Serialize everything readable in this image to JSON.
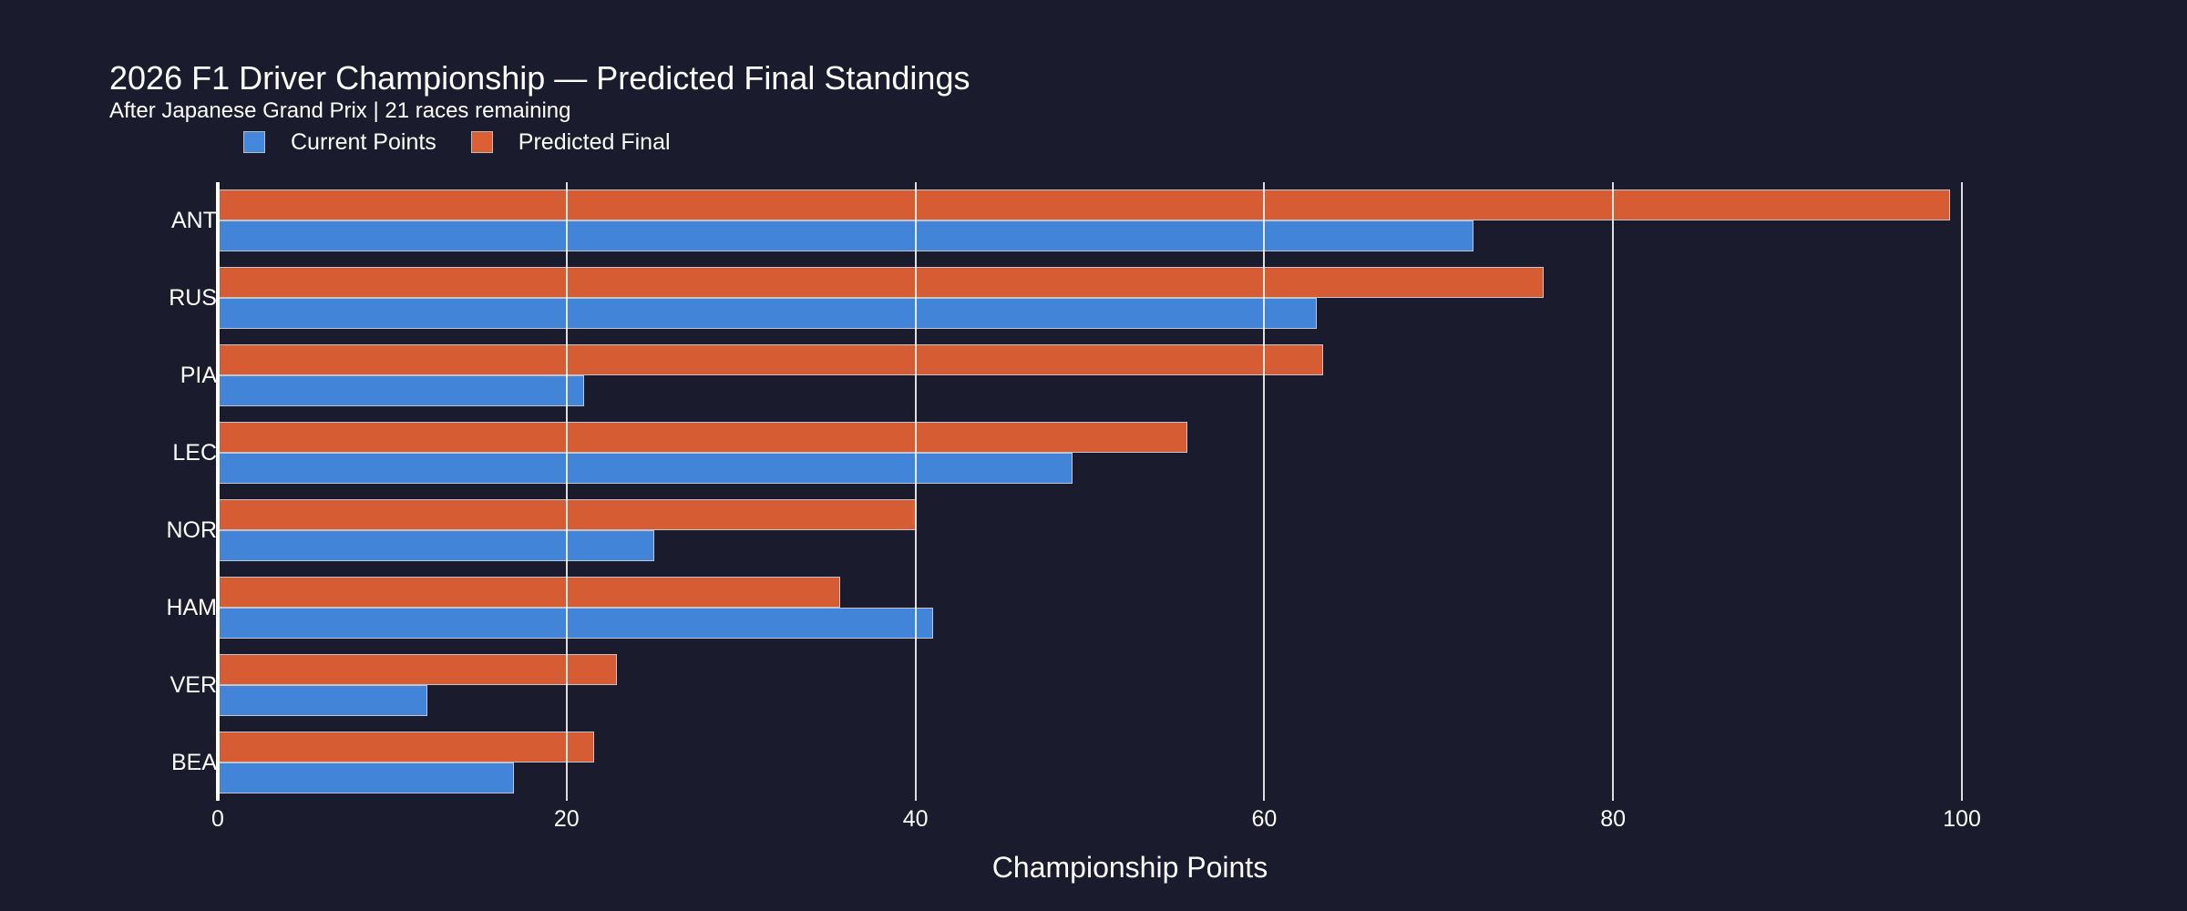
{
  "header": {
    "title": "2026 F1 Driver Championship — Predicted Final Standings",
    "subtitle": "After Japanese Grand Prix | 21 races remaining"
  },
  "legend": {
    "items": [
      {
        "label": "Current Points",
        "color": "#4488dd"
      },
      {
        "label": "Predicted Final",
        "color": "#dd5f34"
      }
    ]
  },
  "axis": {
    "x_title": "Championship Points",
    "x_ticks": [
      "0",
      "20",
      "40",
      "60",
      "80",
      "100"
    ]
  },
  "colors": {
    "background": "#1b1b2e",
    "current": "#4488dd",
    "predicted": "#dd5f34"
  },
  "chart_data": {
    "type": "bar",
    "orientation": "horizontal",
    "title": "2026 F1 Driver Championship — Predicted Final Standings",
    "subtitle": "After Japanese Grand Prix | 21 races remaining",
    "xlabel": "Championship Points",
    "ylabel": "",
    "xlim": [
      0,
      100
    ],
    "x_ticks": [
      0,
      20,
      40,
      60,
      80,
      100
    ],
    "grid": "x",
    "legend_position": "top-left",
    "categories": [
      "ANT",
      "RUS",
      "PIA",
      "LEC",
      "NOR",
      "HAM",
      "VER",
      "BEA"
    ],
    "series": [
      {
        "name": "Current Points",
        "color": "#4488dd",
        "values": [
          72,
          63,
          21,
          49,
          25,
          41,
          12,
          17
        ]
      },
      {
        "name": "Predicted Final",
        "color": "#dd5f34",
        "values": [
          99.3,
          76.0,
          63.4,
          55.6,
          40.0,
          35.7,
          22.9,
          21.6
        ]
      }
    ]
  }
}
